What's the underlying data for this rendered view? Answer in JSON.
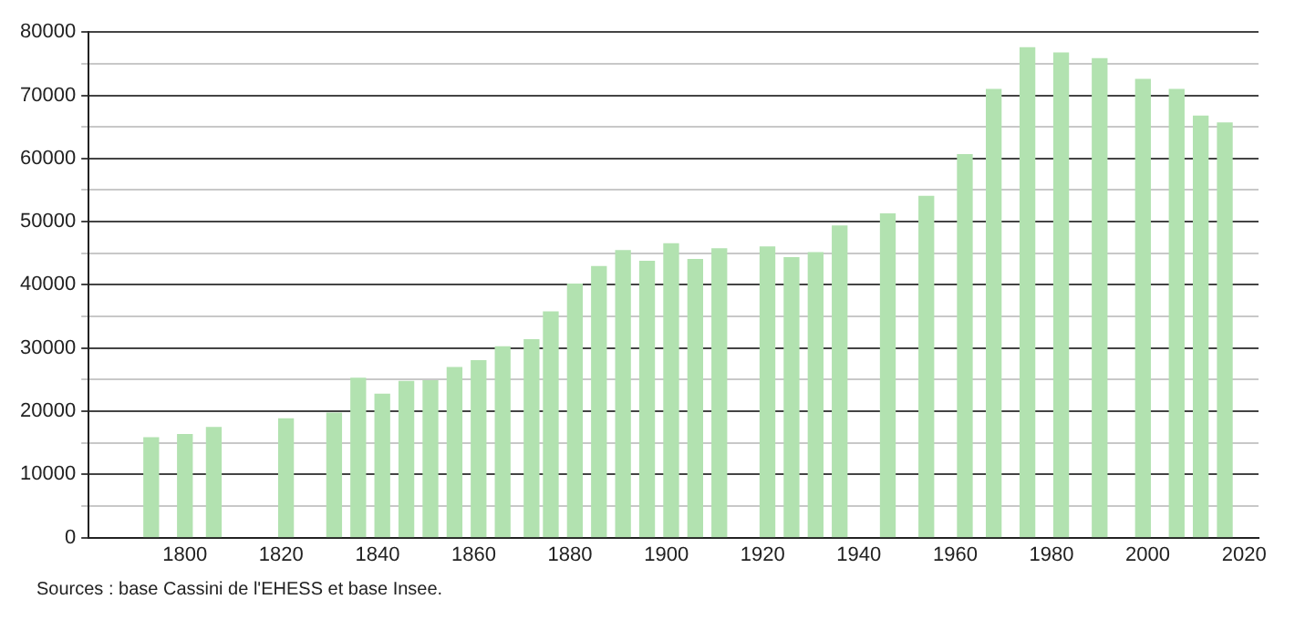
{
  "chart_data": {
    "type": "bar",
    "x": [
      1793,
      1800,
      1806,
      1821,
      1831,
      1836,
      1841,
      1846,
      1851,
      1856,
      1861,
      1866,
      1872,
      1876,
      1881,
      1886,
      1891,
      1896,
      1901,
      1906,
      1911,
      1921,
      1926,
      1931,
      1936,
      1946,
      1954,
      1962,
      1968,
      1975,
      1982,
      1990,
      1999,
      2006,
      2011,
      2016
    ],
    "values": [
      15800,
      16300,
      17400,
      18800,
      19700,
      25200,
      22700,
      24700,
      24800,
      26900,
      28000,
      30200,
      31300,
      35700,
      40100,
      42900,
      45400,
      43700,
      46500,
      44000,
      45700,
      46000,
      44300,
      45100,
      49300,
      51200,
      54000,
      60600,
      70900,
      77500,
      76700,
      75800,
      72500,
      70900,
      66700,
      65600
    ],
    "color": "#b2e2b0",
    "xlim": [
      1780,
      2023
    ],
    "xticks": [
      1800,
      1820,
      1840,
      1860,
      1880,
      1900,
      1920,
      1940,
      1960,
      1980,
      2000,
      2020
    ],
    "ylim": [
      0,
      80000
    ],
    "yticks": [
      0,
      {
        "value": 5000,
        "label": null
      },
      10000,
      {
        "value": 15000,
        "label": null
      },
      20000,
      {
        "value": 25000,
        "label": null
      },
      30000,
      {
        "value": 35000,
        "label": null
      },
      40000,
      {
        "value": 45000,
        "label": null
      },
      50000,
      {
        "value": 55000,
        "label": null
      },
      60000,
      {
        "value": 65000,
        "label": null
      },
      70000,
      {
        "value": 75000,
        "label": null
      },
      80000
    ],
    "grid": "y",
    "annotations": [
      "Sources : base Cassini de l'EHESS et base Insee."
    ]
  }
}
